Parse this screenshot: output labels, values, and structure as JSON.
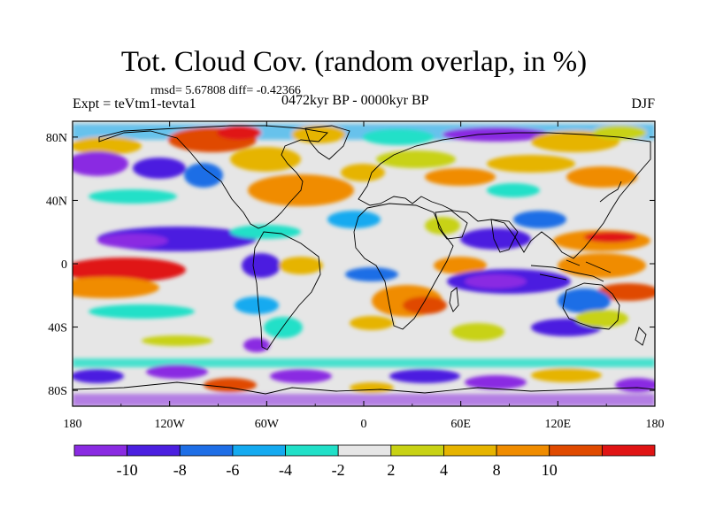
{
  "title": "Tot. Cloud Cov. (random overlap, in %)",
  "stats_text": "rmsd= 5.67808 diff= -0.42366",
  "experiment_text": "Expt = teVtm1-tevta1",
  "period_text": "0472kyr BP - 0000kyr BP",
  "season_text": "DJF",
  "map": {
    "projection": "cylindrical-equidistant",
    "lon_range": [
      -180,
      180
    ],
    "lat_range": [
      -90,
      90
    ],
    "lon_tick_labels": [
      "180",
      "120W",
      "60W",
      "0",
      "60E",
      "120E",
      "180"
    ],
    "lat_tick_labels": [
      "80N",
      "40N",
      "0",
      "40S",
      "80S"
    ],
    "background_color": "#e6e6e6",
    "coastline_color": "#000000"
  },
  "colorbar": {
    "tick_labels": [
      "-10",
      "-8",
      "-6",
      "-4",
      "-2",
      "2",
      "4",
      "8",
      "10"
    ],
    "colors": [
      "#8a2be2",
      "#4b1fe0",
      "#1e6ee6",
      "#14aaf0",
      "#20e0c8",
      "#e6e6e6",
      "#c8d214",
      "#e6b400",
      "#f08c00",
      "#e04a00",
      "#e01414"
    ]
  }
}
